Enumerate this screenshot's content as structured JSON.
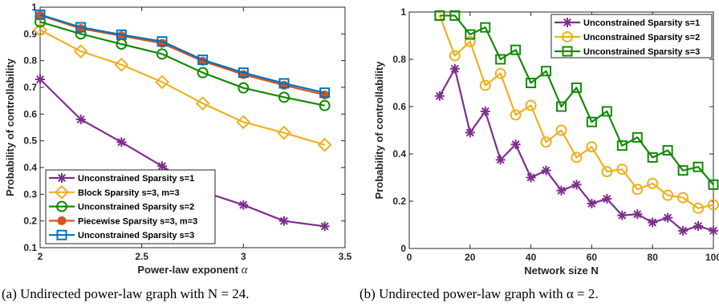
{
  "chart_data": [
    {
      "type": "line",
      "xlabel": "Power-law exponent",
      "xlabel_symbol": "α",
      "ylabel": "Probability of controllability",
      "xlim": [
        2,
        3.5
      ],
      "ylim": [
        0.1,
        1
      ],
      "xticks": [
        2,
        2.5,
        3,
        3.5
      ],
      "xtick_labels": [
        "2",
        "2.5",
        "3",
        "3.5"
      ],
      "yticks": [
        0.1,
        0.2,
        0.3,
        0.4,
        0.5,
        0.6,
        0.7,
        0.8,
        0.9,
        1
      ],
      "ytick_labels": [
        "0.1",
        "0.2",
        "0.3",
        "0.4",
        "0.5",
        "0.6",
        "0.7",
        "0.8",
        "0.9",
        "1"
      ],
      "grid": false,
      "legend_position": "bottom-left",
      "x": [
        2.0,
        2.2,
        2.4,
        2.6,
        2.8,
        3.0,
        3.2,
        3.4
      ],
      "series": [
        {
          "name": "Unconstrained Sparsity s=1",
          "marker": "asterisk",
          "color": "#7e2f8e",
          "values": [
            0.73,
            0.58,
            0.495,
            0.405,
            0.31,
            0.26,
            0.2,
            0.18
          ]
        },
        {
          "name": "Block Sparsity s=3, m=3",
          "marker": "diamond",
          "color": "#edb120",
          "values": [
            0.915,
            0.835,
            0.785,
            0.72,
            0.64,
            0.57,
            0.53,
            0.485
          ]
        },
        {
          "name": "Unconstrained Sparsity s=2",
          "marker": "circle",
          "color": "#138a07",
          "values": [
            0.945,
            0.9,
            0.862,
            0.825,
            0.755,
            0.698,
            0.663,
            0.632
          ]
        },
        {
          "name": "Piecewise Sparsity s=3, m=3",
          "marker": "dot",
          "color": "#d95319",
          "values": [
            0.97,
            0.92,
            0.893,
            0.865,
            0.798,
            0.748,
            0.708,
            0.672
          ]
        },
        {
          "name": "Unconstrained Sparsity s=3",
          "marker": "square",
          "color": "#0072bd",
          "values": [
            0.972,
            0.925,
            0.897,
            0.872,
            0.803,
            0.755,
            0.715,
            0.68
          ]
        }
      ]
    },
    {
      "type": "line",
      "xlabel": "Network size N",
      "ylabel": "Probability of controllability",
      "xlim": [
        0,
        100
      ],
      "ylim": [
        0,
        1
      ],
      "xticks": [
        0,
        20,
        40,
        60,
        80,
        100
      ],
      "xtick_labels": [
        "0",
        "20",
        "40",
        "60",
        "80",
        "100"
      ],
      "yticks": [
        0,
        0.2,
        0.4,
        0.6,
        0.8,
        1
      ],
      "ytick_labels": [
        "0",
        "0.2",
        "0.4",
        "0.6",
        "0.8",
        "1"
      ],
      "grid": false,
      "legend_position": "top-right",
      "x": [
        10,
        15,
        20,
        25,
        30,
        35,
        40,
        45,
        50,
        55,
        60,
        65,
        70,
        75,
        80,
        85,
        90,
        95,
        100
      ],
      "series": [
        {
          "name": "Unconstrained Sparsity s=1",
          "marker": "asterisk",
          "color": "#7e2f8e",
          "values": [
            0.645,
            0.76,
            0.49,
            0.58,
            0.375,
            0.44,
            0.3,
            0.33,
            0.245,
            0.27,
            0.19,
            0.21,
            0.14,
            0.145,
            0.11,
            0.13,
            0.075,
            0.095,
            0.075
          ]
        },
        {
          "name": "Unconstrained Sparsity s=2",
          "marker": "circle",
          "color": "#edb120",
          "values": [
            0.985,
            0.815,
            0.875,
            0.69,
            0.74,
            0.565,
            0.605,
            0.45,
            0.5,
            0.385,
            0.43,
            0.325,
            0.335,
            0.25,
            0.275,
            0.225,
            0.215,
            0.17,
            0.185
          ]
        },
        {
          "name": "Unconstrained Sparsity s=3",
          "marker": "square",
          "color": "#138a07",
          "values": [
            0.985,
            0.985,
            0.905,
            0.935,
            0.8,
            0.84,
            0.7,
            0.75,
            0.6,
            0.68,
            0.535,
            0.58,
            0.435,
            0.47,
            0.385,
            0.415,
            0.33,
            0.345,
            0.27
          ]
        }
      ]
    }
  ],
  "captions": [
    "(a) Undirected power-law graph with N = 24.",
    "(b) Undirected power-law graph with α = 2."
  ]
}
